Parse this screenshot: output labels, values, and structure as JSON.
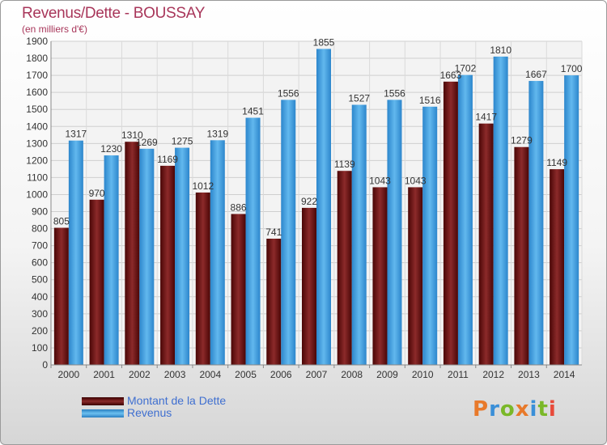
{
  "header": {
    "title": "Revenus/Dette - BOUSSAY",
    "subtitle": "(en milliers d'€)"
  },
  "legend": {
    "debt_label": "Montant de la Dette",
    "revenue_label": "Revenus"
  },
  "logo": {
    "text": "Proxiti"
  },
  "colors": {
    "debt": "#7a1a1a",
    "revenue": "#4aa3e0",
    "title": "#a8365a",
    "legend_text": "#3f6fd0"
  },
  "chart_data": {
    "type": "bar",
    "title": "Revenus/Dette - BOUSSAY",
    "subtitle": "(en milliers d'€)",
    "categories": [
      "2000",
      "2001",
      "2002",
      "2003",
      "2004",
      "2005",
      "2006",
      "2007",
      "2008",
      "2009",
      "2010",
      "2011",
      "2012",
      "2013",
      "2014"
    ],
    "series": [
      {
        "name": "Montant de la Dette",
        "values": [
          805,
          970,
          1310,
          1169,
          1012,
          886,
          741,
          922,
          1139,
          1043,
          1043,
          1663,
          1417,
          1279,
          1149
        ]
      },
      {
        "name": "Revenus",
        "values": [
          1317,
          1230,
          1269,
          1275,
          1319,
          1451,
          1556,
          1855,
          1527,
          1556,
          1516,
          1702,
          1810,
          1667,
          1700
        ]
      }
    ],
    "value_labels": {
      "Montant de la Dette": [
        "805",
        "970",
        "1310",
        "1169",
        "1012",
        "886",
        "741",
        "922",
        "1139",
        "1043",
        "1043",
        "1663",
        "1417",
        "1279",
        "1149"
      ],
      "Revenus": [
        "1317",
        "1230",
        "1269",
        "1275",
        "1319",
        "1451",
        "1556",
        "1855",
        "1527",
        "1556",
        "1516",
        "1702",
        "1810",
        "1667",
        "1700"
      ]
    },
    "ylim": [
      0,
      1900
    ],
    "ytick_step": 100,
    "grid": true
  }
}
